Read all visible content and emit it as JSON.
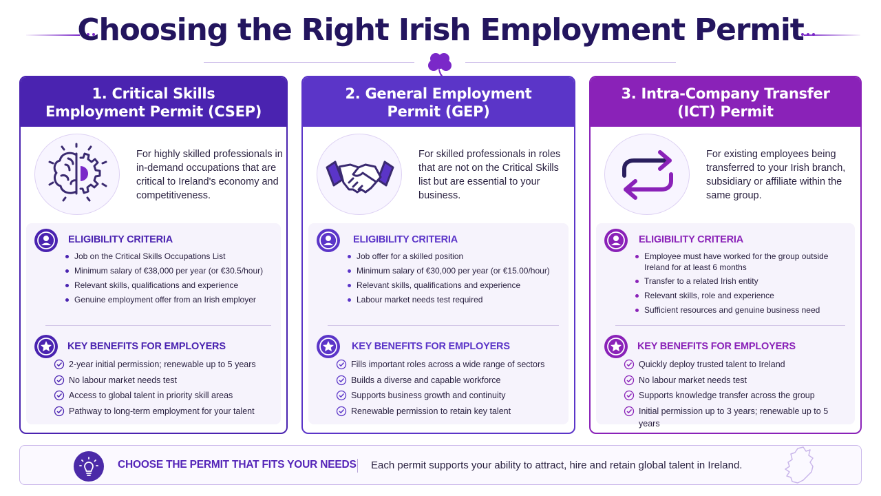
{
  "title": "Choosing the Right Irish Employment Permit",
  "icons": {
    "header": "shamrock-icon",
    "banner": "lightbulb-icon",
    "map": "ireland-map-icon"
  },
  "colors": {
    "navy": "#23155e",
    "purple": "#5b2fc0",
    "violet": "#7a28c8",
    "magenta": "#8a22b8"
  },
  "cards": [
    {
      "title_line1": "1. Critical Skills",
      "title_line2": "Employment Permit (CSEP)",
      "icon": "brain-gear-icon",
      "intro": "For highly skilled professionals in in-demand occupations that are critical to Ireland's economy and competitiveness.",
      "eligibility_title": "ELIGIBILITY CRITERIA",
      "eligibility": [
        "Job on the Critical Skills Occupations List",
        "Minimum salary of €38,000 per year (or €30.5/hour)",
        "Relevant skills, qualifications and experience",
        "Genuine employment offer from an Irish employer"
      ],
      "benefits_title": "KEY BENEFITS FOR EMPLOYERS",
      "benefits": [
        "2-year initial permission; renewable up to 5 years",
        "No labour market needs test",
        "Access to global talent in priority skill areas",
        "Pathway to long-term employment for your talent"
      ]
    },
    {
      "title_line1": "2. General Employment",
      "title_line2": "Permit (GEP)",
      "icon": "handshake-icon",
      "intro": "For skilled professionals in roles that are not on the Critical Skills list but are essential to your business.",
      "eligibility_title": "ELIGIBILITY CRITERIA",
      "eligibility": [
        "Job offer for a skilled position",
        "Minimum salary of €30,000 per year (or €15.00/hour)",
        "Relevant skills, qualifications and experience",
        "Labour market needs test required"
      ],
      "benefits_title": "KEY BENEFITS FOR EMPLOYERS",
      "benefits": [
        "Fills important roles across a wide range of sectors",
        "Builds a diverse and capable workforce",
        "Supports business growth and continuity",
        "Renewable permission to retain key talent"
      ]
    },
    {
      "title_line1": "3. Intra-Company Transfer",
      "title_line2": "(ICT) Permit",
      "icon": "transfer-arrows-icon",
      "intro": "For existing employees being transferred to your Irish branch, subsidiary or affiliate within the same group.",
      "eligibility_title": "ELIGIBILITY CRITERIA",
      "eligibility": [
        "Employee must have worked for the group outside Ireland for at least 6 months",
        "Transfer to a related Irish entity",
        "Relevant skills, role and experience",
        "Sufficient resources and genuine business need"
      ],
      "benefits_title": "KEY BENEFITS FOR EMPLOYERS",
      "benefits": [
        "Quickly deploy trusted talent to Ireland",
        "No labour market needs test",
        "Supports knowledge transfer across the group",
        "Initial permission up to 3 years; renewable up to 5 years"
      ]
    }
  ],
  "banner": {
    "title": "CHOOSE THE PERMIT THAT FITS YOUR NEEDS",
    "text": "Each permit supports your ability to attract, hire and retain global talent in Ireland."
  }
}
